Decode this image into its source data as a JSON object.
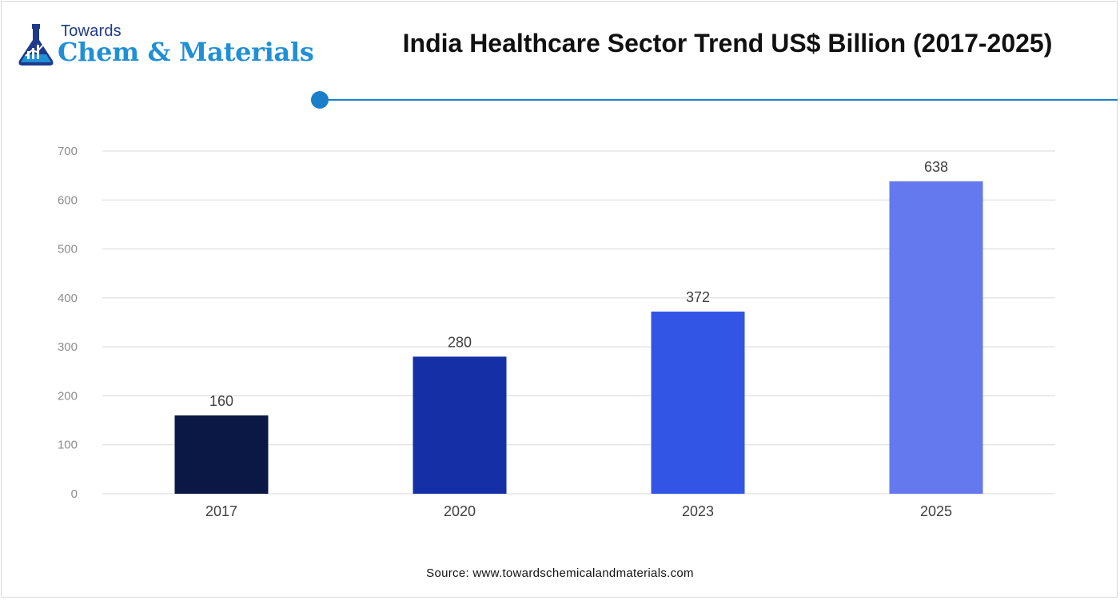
{
  "logo": {
    "small_text": "Towards",
    "big_text": "Chem & Materials"
  },
  "title": "India Healthcare Sector Trend US$ Billion (2017-2025)",
  "source": "Source: www.towardschemicalandmaterials.com",
  "colors": {
    "accent": "#1a7fc8",
    "grid": "#d9d9d9",
    "axis_text": "#8c8c8c",
    "bar_2017": "#0b1744",
    "bar_2020": "#1530a6",
    "bar_2023": "#3355e6",
    "bar_2025": "#6479ee"
  },
  "chart_data": {
    "type": "bar",
    "title": "India Healthcare Sector Trend US$ Billion (2017-2025)",
    "categories": [
      "2017",
      "2020",
      "2023",
      "2025"
    ],
    "values": [
      160,
      280,
      372,
      638
    ],
    "data_labels": [
      "160",
      "280",
      "372",
      "638"
    ],
    "bar_colors": [
      "#0b1744",
      "#1530a6",
      "#3355e6",
      "#6479ee"
    ],
    "ylim": [
      0,
      700
    ],
    "yticks": [
      0,
      100,
      200,
      300,
      400,
      500,
      600,
      700
    ],
    "ytick_labels": [
      "0",
      "100",
      "200",
      "300",
      "400",
      "500",
      "600",
      "700"
    ],
    "grid": true,
    "legend": false
  }
}
